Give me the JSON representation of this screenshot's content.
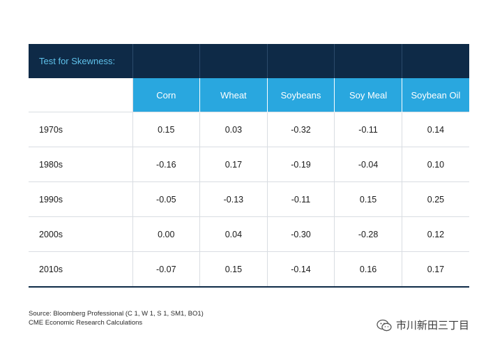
{
  "chart_data": {
    "type": "table",
    "title": "Test for Skewness:",
    "columns": [
      "Corn",
      "Wheat",
      "Soybeans",
      "Soy Meal",
      "Soybean Oil"
    ],
    "rows": [
      {
        "label": "1970s",
        "values": [
          "0.15",
          "0.03",
          "-0.32",
          "-0.11",
          "0.14"
        ]
      },
      {
        "label": "1980s",
        "values": [
          "-0.16",
          "0.17",
          "-0.19",
          "-0.04",
          "0.10"
        ]
      },
      {
        "label": "1990s",
        "values": [
          "-0.05",
          "-0.13",
          "-0.11",
          "0.15",
          "0.25"
        ]
      },
      {
        "label": "2000s",
        "values": [
          "0.00",
          "0.04",
          "-0.30",
          "-0.28",
          "0.12"
        ]
      },
      {
        "label": "2010s",
        "values": [
          "-0.07",
          "0.15",
          "-0.14",
          "0.16",
          "0.17"
        ]
      }
    ]
  },
  "source": {
    "line1": "Source: Bloomberg Professional (C 1, W 1, S 1, SM1, BO1)",
    "line2": "CME Economic Research Calculations"
  },
  "watermark": {
    "text": "市川新田三丁目",
    "icon": "wechat-icon"
  },
  "colors": {
    "title_bg": "#0e2a47",
    "title_text": "#5fc1ea",
    "header_bg": "#29a7df",
    "header_text": "#ffffff"
  }
}
